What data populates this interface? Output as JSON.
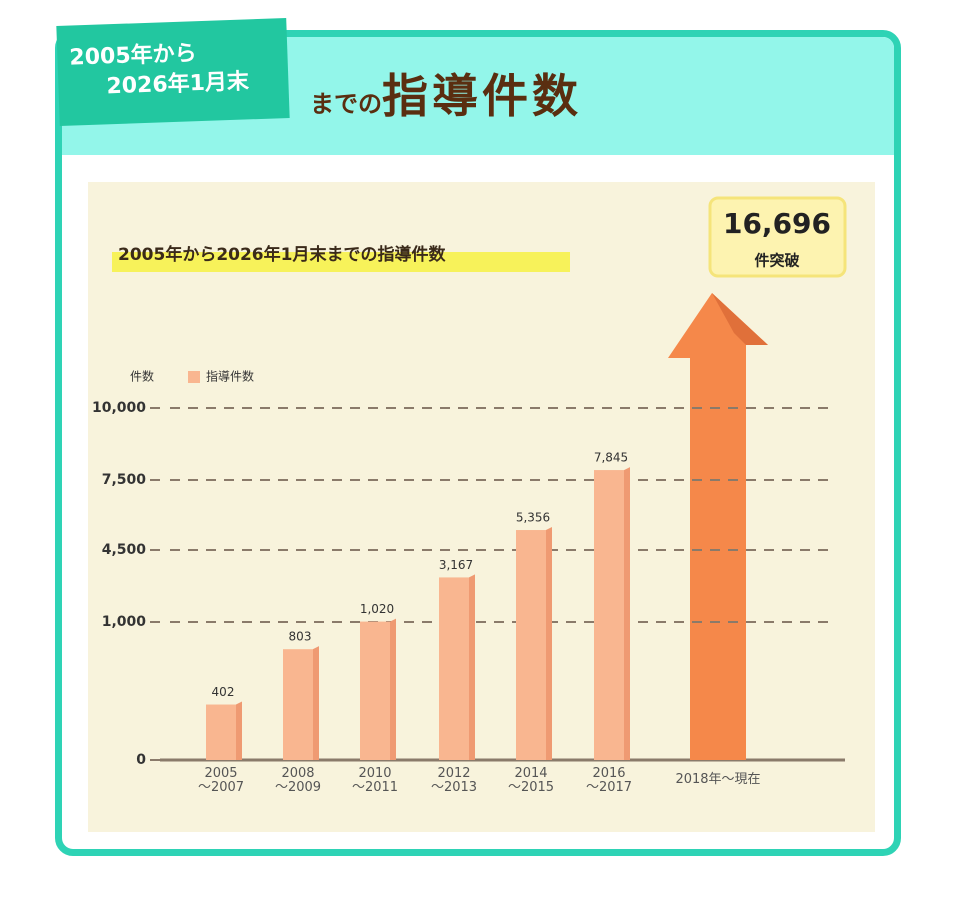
{
  "header": {
    "tag_line1": "2005年から",
    "tag_line2": "2026年1月末",
    "title_prefix": "までの",
    "title_main": "指導件数"
  },
  "chart_data": {
    "type": "bar",
    "title": "2005年から2026年1月末までの指導件数",
    "y_label": "件数",
    "categories": [
      "2005\n～2007",
      "2008\n～2009",
      "2010\n～2011",
      "2012\n～2013",
      "2014\n～2015",
      "2016\n～2017",
      "2018年～現在"
    ],
    "series": [
      {
        "name": "指導件数",
        "color": "#f9b690",
        "values": [
          402,
          803,
          1020,
          3167,
          5356,
          7845,
          null
        ],
        "value_labels": [
          "402",
          "803",
          "1,020",
          "3,167",
          "5,356",
          "7,845",
          null
        ]
      }
    ],
    "ylim": [
      0,
      10000
    ],
    "yticks": [
      0,
      {
        "value": 1000,
        "label": "1,000"
      },
      {
        "value": 4500,
        "label": "4,500"
      },
      {
        "value": 7500,
        "label": "7,500"
      },
      {
        "value": 10000,
        "label": "10,000"
      }
    ],
    "grid": true,
    "callout": {
      "label": "16,696",
      "text": "件突破"
    }
  }
}
